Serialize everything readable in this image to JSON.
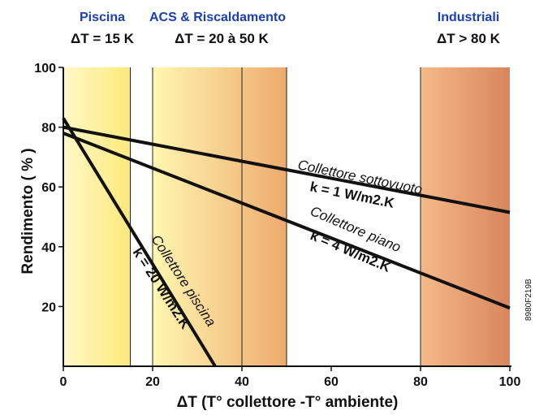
{
  "chart_data": {
    "type": "line",
    "xlabel": "ΔT (T° collettore -T° ambiente)",
    "ylabel": "Rendimento ( % )",
    "xlim": [
      0,
      100
    ],
    "ylim": [
      0,
      100
    ],
    "x_ticks": [
      "0",
      "20",
      "40",
      "60",
      "80",
      "100"
    ],
    "y_ticks": [
      "20",
      "40",
      "60",
      "80",
      "100"
    ],
    "grid": false,
    "zones": [
      {
        "name": "Piscina",
        "delta": "ΔT = 15 K",
        "range": [
          0,
          15
        ],
        "color_from": "#fff8c8",
        "color_to": "#fde97a"
      },
      {
        "name": "ACS & Riscaldamento",
        "delta": "ΔT = 20 à 50 K",
        "range": [
          20,
          50
        ],
        "color_from": "#fff7b0",
        "color_to": "#efaa6e"
      },
      {
        "name": "Industriali",
        "delta": "ΔT > 80 K",
        "range": [
          80,
          100
        ],
        "color_from": "#f5b98a",
        "color_to": "#d8865c"
      }
    ],
    "series": [
      {
        "name": "Collettore sottovuoto",
        "k_label": "k = 1 W/m2.K",
        "x": [
          0,
          100
        ],
        "y": [
          80,
          51.5
        ]
      },
      {
        "name": "Collettore piano",
        "k_label": "k = 4 W/m2.K",
        "x": [
          0,
          100
        ],
        "y": [
          78,
          19.5
        ]
      },
      {
        "name": "Collettore piscina",
        "k_label": "k = 20 W/m2.K",
        "x": [
          0,
          34
        ],
        "y": [
          83,
          0
        ]
      }
    ],
    "code": "8980F219B"
  },
  "colors": {
    "zone_title": "#1a3fb5",
    "ink": "#111111"
  }
}
